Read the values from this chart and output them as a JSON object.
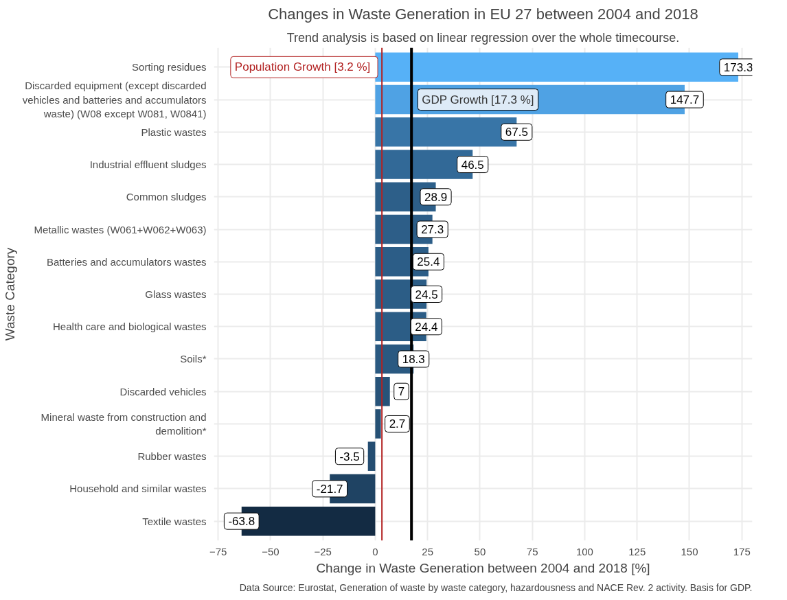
{
  "chart_data": {
    "type": "bar",
    "orientation": "horizontal",
    "title": "Changes in Waste Generation in EU 27 between 2004 and 2018",
    "subtitle": "Trend analysis is based on linear regression over the whole timecourse.",
    "xlabel": "Change in Waste Generation between 2004 and 2018 [%]",
    "ylabel": "Waste Category",
    "categories": [
      "Sorting residues",
      "Discarded equipment (except discarded vehicles and batteries and accumulators waste) (W08 except W081, W0841)",
      "Plastic wastes",
      "Industrial effluent sludges",
      "Common sludges",
      "Metallic wastes (W061+W062+W063)",
      "Batteries and accumulators wastes",
      "Glass wastes",
      "Health care and biological wastes",
      "Soils*",
      "Discarded vehicles",
      "Mineral waste from construction and demolition*",
      "Rubber wastes",
      "Household and similar wastes",
      "Textile wastes"
    ],
    "values": [
      173.3,
      147.7,
      67.5,
      46.5,
      28.9,
      27.3,
      25.4,
      24.5,
      24.4,
      18.3,
      7,
      2.7,
      -3.5,
      -21.7,
      -63.8
    ],
    "colors": [
      "#56b1f7",
      "#4fa2e4",
      "#3875a7",
      "#326997",
      "#2d5f89",
      "#2d5e88",
      "#2c5d87",
      "#2c5d86",
      "#2c5d86",
      "#2a5981",
      "#275379",
      "#265175",
      "#244d71",
      "#1f4363",
      "#132b43"
    ],
    "data_labels": true,
    "xlim": [
      -77,
      180
    ],
    "xticks": [
      -75,
      -50,
      -25,
      0,
      25,
      50,
      75,
      100,
      125,
      150,
      175
    ],
    "grid": true,
    "ref_lines": [
      {
        "axis": "x",
        "value": 3.2,
        "label": "Population  Growth [3.2 %]",
        "color": "#b22222"
      },
      {
        "axis": "x",
        "value": 17.3,
        "label": "GDP Growth [17.3 %]",
        "color": "#000000"
      }
    ],
    "annotations": [
      "Data Source: Eurostat, Generation of waste by waste category, hazardousness and NACE Rev. 2 activity. Basis for GDP."
    ]
  }
}
